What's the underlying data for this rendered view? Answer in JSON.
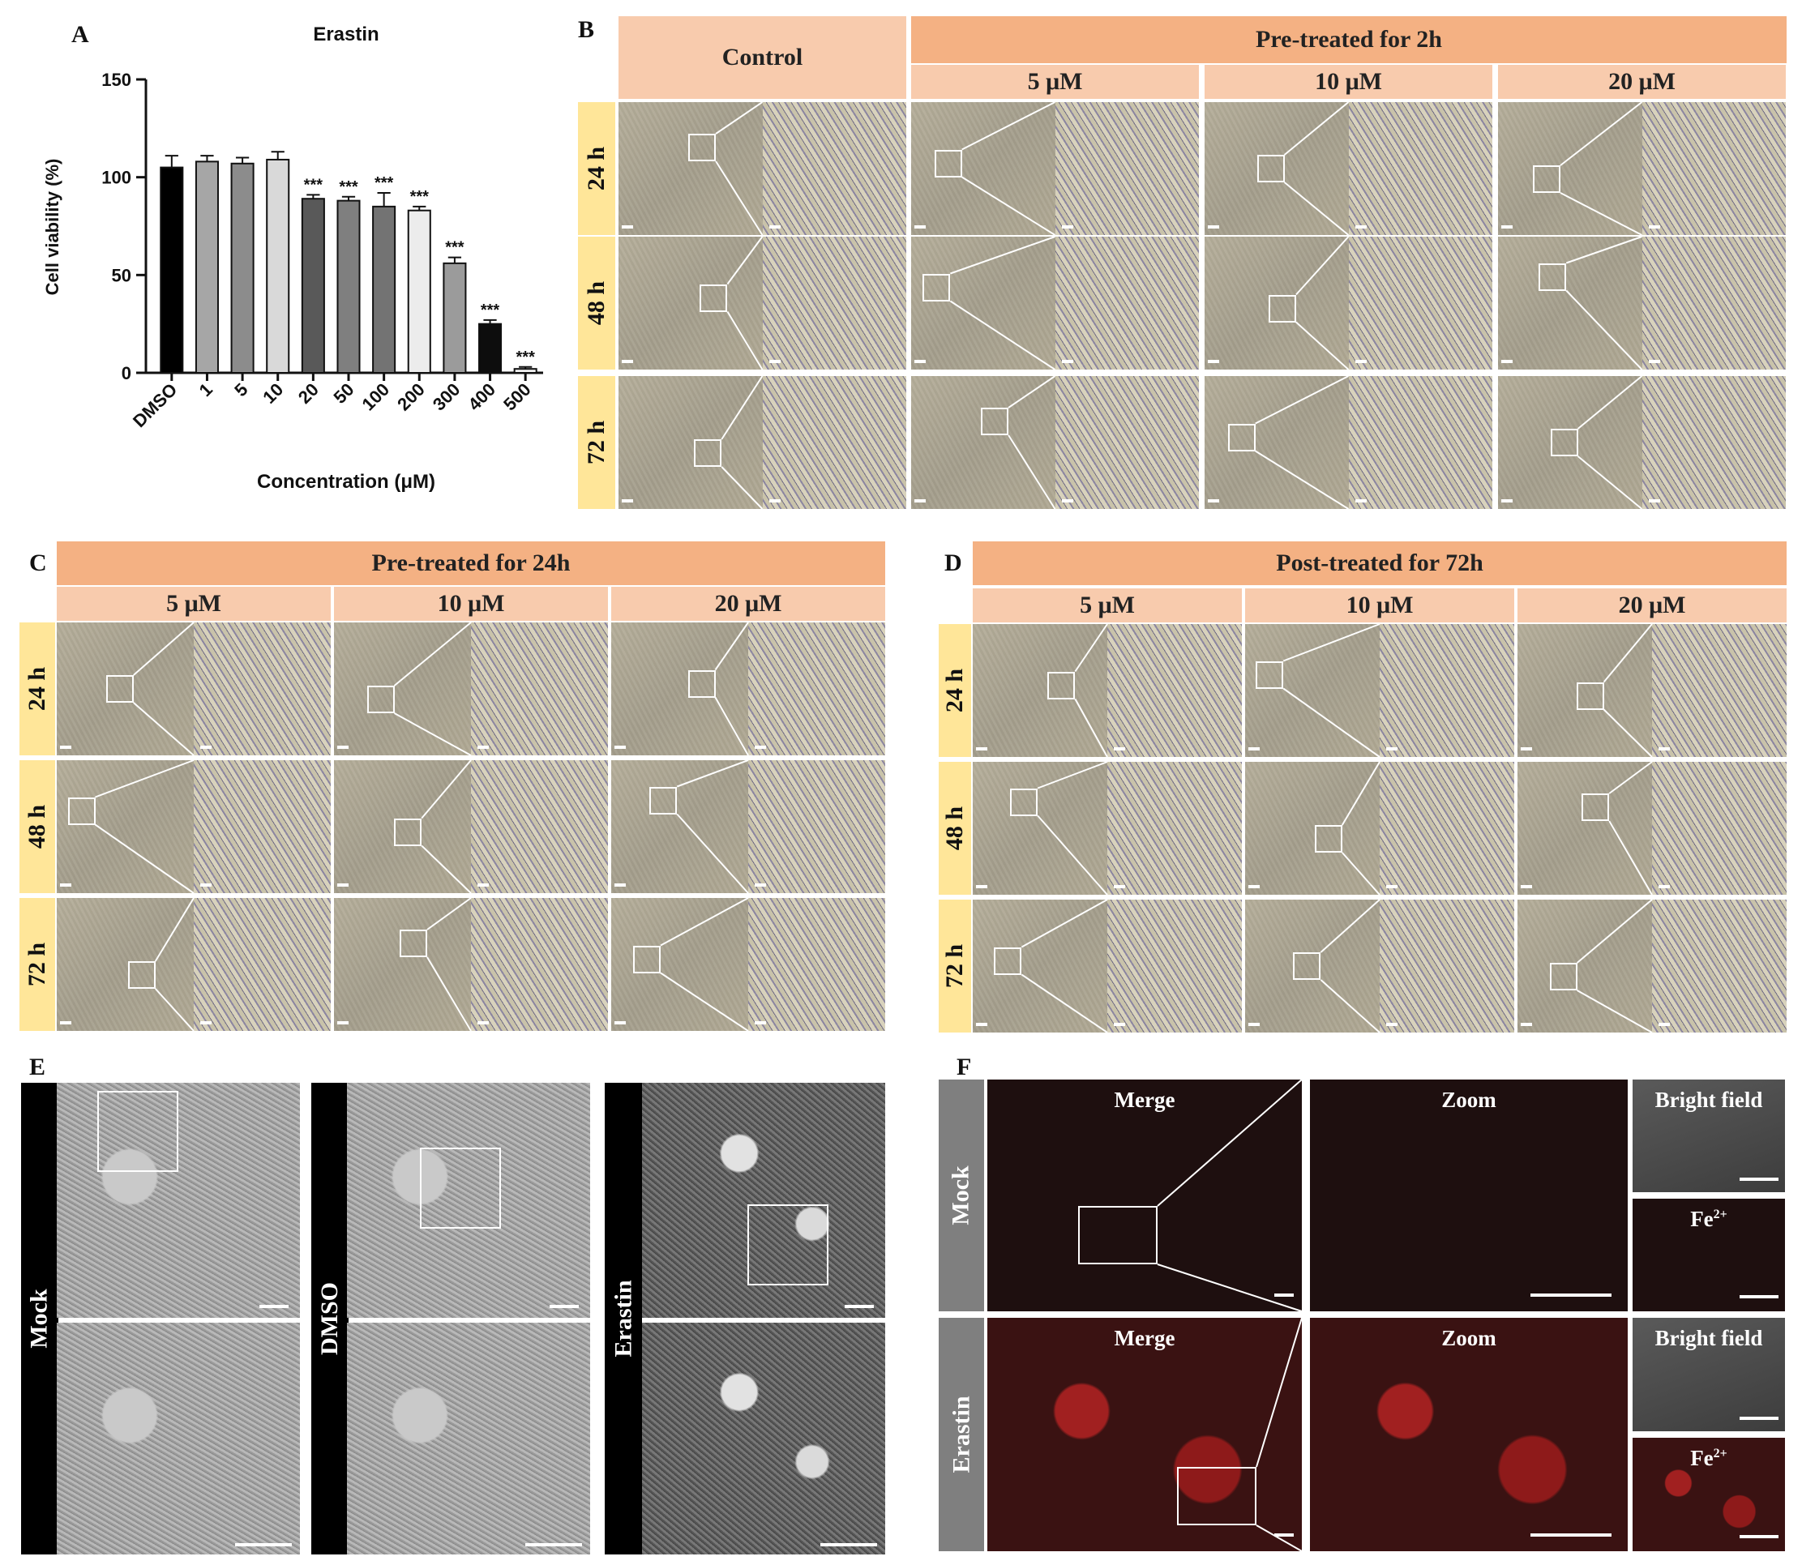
{
  "panels": {
    "a": "A",
    "b": "B",
    "c": "C",
    "d": "D",
    "e": "E",
    "f": "F"
  },
  "chart_data": {
    "type": "bar",
    "title": "Erastin",
    "xlabel": "Concentration (μM)",
    "ylabel": "Cell viability (%)",
    "ylim": [
      0,
      150
    ],
    "yticks": [
      "0",
      "50",
      "100",
      "150"
    ],
    "categories": [
      "DMSO",
      "1",
      "5",
      "10",
      "20",
      "50",
      "100",
      "200",
      "300",
      "400",
      "500"
    ],
    "values": [
      105,
      108,
      107,
      109,
      89,
      88,
      85,
      83,
      56,
      25,
      2
    ],
    "errors": [
      6,
      3,
      3,
      4,
      2,
      2,
      7,
      2,
      3,
      2,
      1
    ],
    "significance": [
      "",
      "",
      "",
      "",
      "***",
      "***",
      "***",
      "***",
      "***",
      "***",
      "***"
    ],
    "colors": [
      "#000000",
      "#a6a6a6",
      "#8c8c8c",
      "#d9d9d9",
      "#595959",
      "#7f7f7f",
      "#737373",
      "#ececec",
      "#9b9b9b",
      "#0d0d0d",
      "#f2f2f2"
    ]
  },
  "panel_b": {
    "control": "Control",
    "group": "Pre-treated for 2h",
    "doses": [
      "5 μM",
      "10 μM",
      "20 μM"
    ],
    "times": [
      "24 h",
      "48 h",
      "72 h"
    ]
  },
  "panel_c": {
    "group": "Pre-treated for 24h",
    "doses": [
      "5 μM",
      "10 μM",
      "20 μM"
    ],
    "times": [
      "24 h",
      "48 h",
      "72 h"
    ]
  },
  "panel_d": {
    "group": "Post-treated for 72h",
    "doses": [
      "5 μM",
      "10 μM",
      "20 μM"
    ],
    "times": [
      "24 h",
      "48 h",
      "72 h"
    ]
  },
  "panel_e": {
    "labels": [
      "Mock",
      "DMSO",
      "Erastin"
    ]
  },
  "panel_f": {
    "rows": [
      "Mock",
      "Erastin"
    ],
    "merge": "Merge",
    "zoom": "Zoom",
    "bright": "Bright field",
    "fe": "Fe",
    "fe_sup": "2+"
  }
}
